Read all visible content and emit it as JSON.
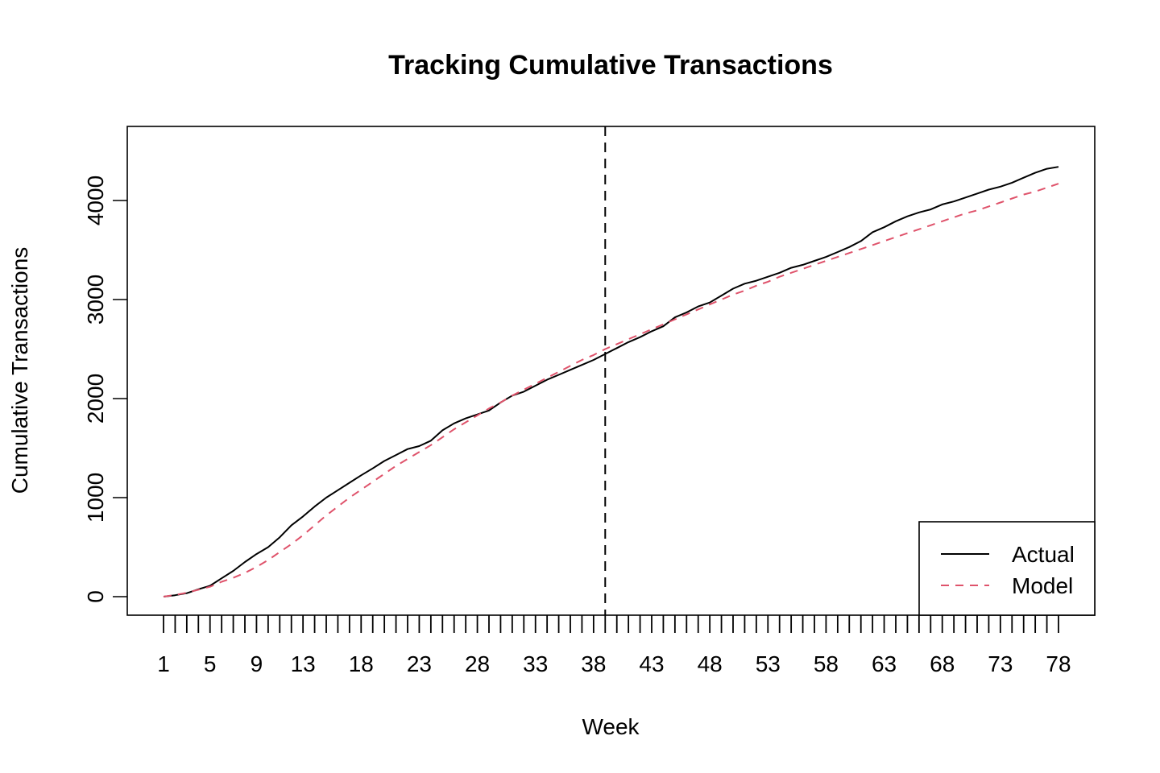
{
  "chart_data": {
    "type": "line",
    "title": "Tracking Cumulative Transactions",
    "xlabel": "Week",
    "ylabel": "Cumulative Transactions",
    "xlim": [
      1,
      78
    ],
    "ylim": [
      0,
      4350
    ],
    "y_ticks": [
      0,
      1000,
      2000,
      3000,
      4000
    ],
    "y_tick_labels": [
      "0",
      "1000",
      "2000",
      "3000",
      "4000"
    ],
    "x_tick_labels": [
      "1",
      "5",
      "9",
      "13",
      "18",
      "23",
      "28",
      "33",
      "38",
      "43",
      "48",
      "53",
      "58",
      "63",
      "68",
      "73",
      "78"
    ],
    "x_tick_label_weeks": [
      1,
      5,
      9,
      13,
      18,
      23,
      28,
      33,
      38,
      43,
      48,
      53,
      58,
      63,
      68,
      73,
      78
    ],
    "x_minor_ticks": "every week 1-78",
    "vline_week": 39,
    "vline_style": "dashed",
    "grid": false,
    "legend_position": "bottom-right",
    "x": [
      1,
      2,
      3,
      4,
      5,
      6,
      7,
      8,
      9,
      10,
      11,
      12,
      13,
      14,
      15,
      16,
      17,
      18,
      19,
      20,
      21,
      22,
      23,
      24,
      25,
      26,
      27,
      28,
      29,
      30,
      31,
      32,
      33,
      34,
      35,
      36,
      37,
      38,
      39,
      40,
      41,
      42,
      43,
      44,
      45,
      46,
      47,
      48,
      49,
      50,
      51,
      52,
      53,
      54,
      55,
      56,
      57,
      58,
      59,
      60,
      61,
      62,
      63,
      64,
      65,
      66,
      67,
      68,
      69,
      70,
      71,
      72,
      73,
      74,
      75,
      76,
      77,
      78
    ],
    "series": [
      {
        "name": "Actual",
        "color": "#000000",
        "dash": "solid",
        "values": [
          0,
          15,
          35,
          75,
          110,
          185,
          260,
          350,
          430,
          500,
          600,
          720,
          810,
          910,
          1000,
          1075,
          1150,
          1225,
          1295,
          1370,
          1430,
          1490,
          1520,
          1575,
          1680,
          1750,
          1800,
          1840,
          1880,
          1960,
          2030,
          2070,
          2130,
          2190,
          2240,
          2290,
          2340,
          2390,
          2450,
          2510,
          2570,
          2620,
          2680,
          2730,
          2820,
          2870,
          2930,
          2970,
          3040,
          3110,
          3160,
          3190,
          3230,
          3270,
          3320,
          3350,
          3390,
          3430,
          3480,
          3530,
          3590,
          3680,
          3730,
          3790,
          3840,
          3880,
          3910,
          3960,
          3990,
          4030,
          4070,
          4110,
          4140,
          4180,
          4230,
          4280,
          4320,
          4340
        ]
      },
      {
        "name": "Model",
        "color": "#df536b",
        "dash": "dashed",
        "values": [
          0,
          18,
          40,
          70,
          100,
          150,
          190,
          240,
          300,
          370,
          450,
          530,
          620,
          720,
          820,
          910,
          1000,
          1080,
          1160,
          1240,
          1320,
          1390,
          1460,
          1530,
          1610,
          1690,
          1760,
          1830,
          1900,
          1960,
          2030,
          2090,
          2150,
          2210,
          2270,
          2330,
          2390,
          2440,
          2500,
          2550,
          2600,
          2650,
          2700,
          2750,
          2800,
          2850,
          2900,
          2950,
          3000,
          3050,
          3090,
          3140,
          3180,
          3230,
          3270,
          3310,
          3350,
          3390,
          3430,
          3470,
          3510,
          3550,
          3590,
          3630,
          3670,
          3710,
          3750,
          3790,
          3830,
          3870,
          3900,
          3940,
          3980,
          4020,
          4060,
          4090,
          4130,
          4170
        ]
      }
    ]
  }
}
